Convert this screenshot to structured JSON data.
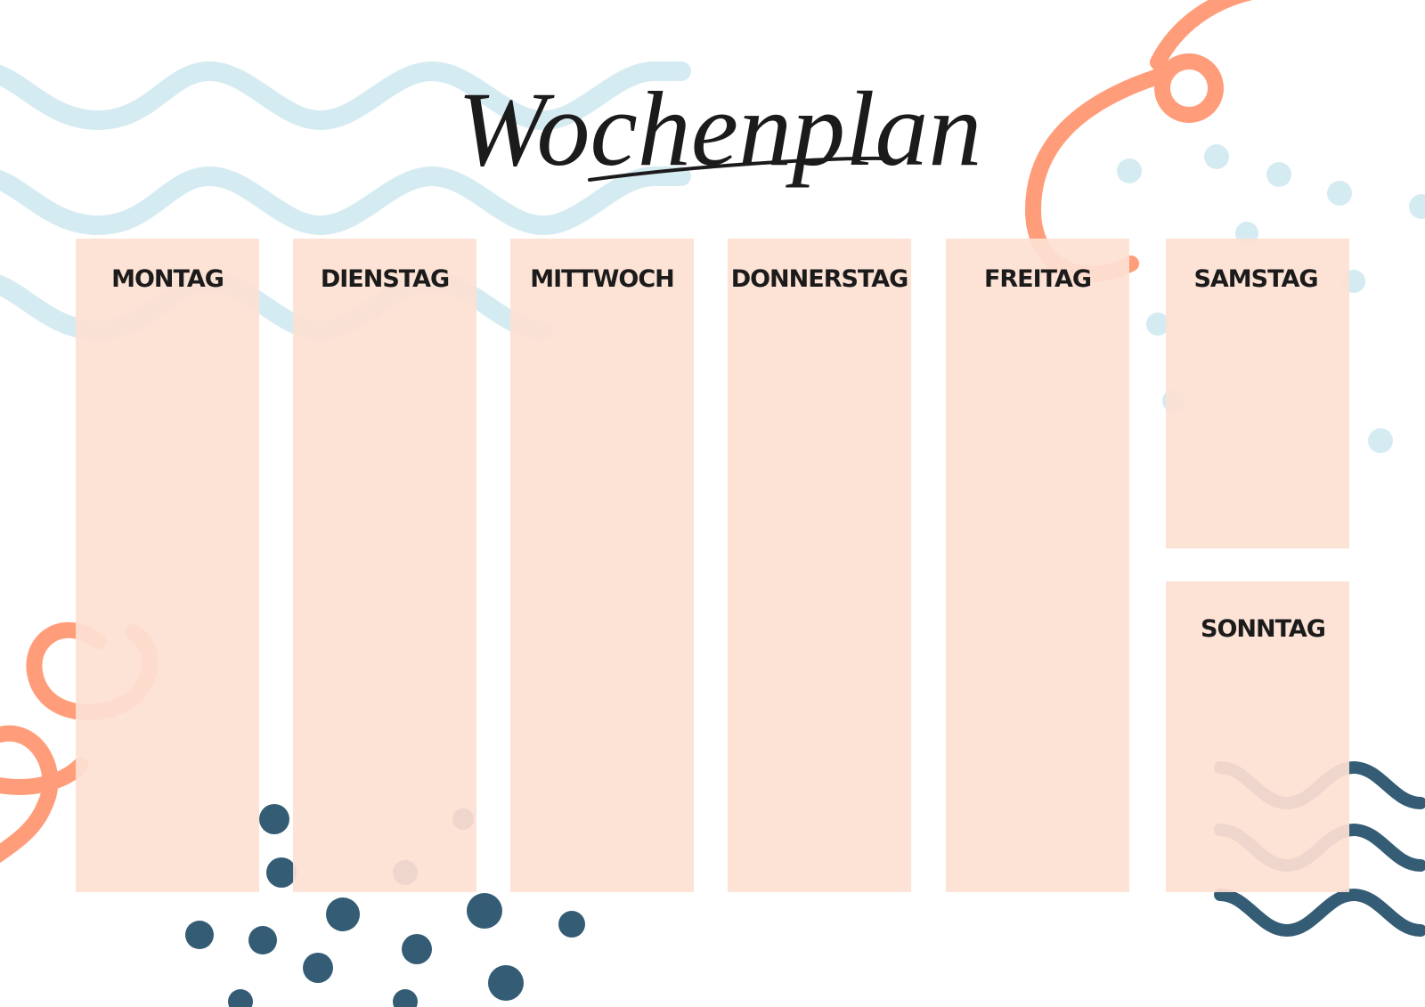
{
  "title": "Wochenplan",
  "days": [
    "MONTAG",
    "DIENSTAG",
    "MITTWOCH",
    "DONNERSTAG",
    "FREITAG",
    "SAMSTAG",
    "SONNTAG"
  ]
}
